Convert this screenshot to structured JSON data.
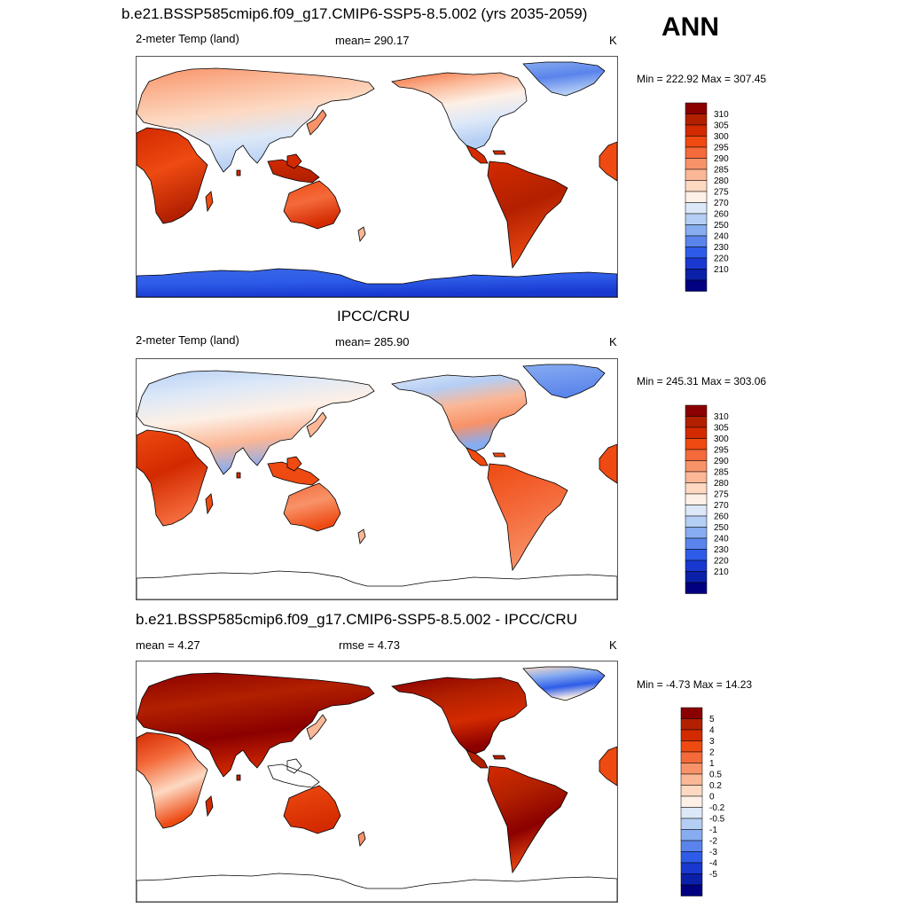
{
  "season": "ANN",
  "panels": [
    {
      "title": "b.e21.BSSP585cmip6.f09_g17.CMIP6-SSP5-8.5.002 (yrs 2035-2059)",
      "left_label": "2-meter Temp (land)",
      "center_label": "mean= 290.17",
      "right_label": "K",
      "minmax": "Min = 222.92 Max = 307.45",
      "map_style": "model",
      "colorbar": {
        "labels": [
          "310",
          "305",
          "300",
          "295",
          "290",
          "285",
          "280",
          "275",
          "270",
          "260",
          "250",
          "240",
          "230",
          "220",
          "210"
        ],
        "colors": [
          "#8b0000",
          "#b22000",
          "#d32a00",
          "#ee4a12",
          "#f46a3a",
          "#f89268",
          "#fbb796",
          "#fdd9c2",
          "#fdf0e6",
          "#dce8f8",
          "#b5cef4",
          "#87acf0",
          "#5a84ec",
          "#2e5ce8",
          "#1838d0",
          "#0a20a8",
          "#000080"
        ]
      }
    },
    {
      "title": "IPCC/CRU",
      "left_label": "2-meter Temp (land)",
      "center_label": "mean= 285.90",
      "right_label": "K",
      "minmax": "Min = 245.31 Max = 303.06",
      "map_style": "obs",
      "colorbar": {
        "labels": [
          "310",
          "305",
          "300",
          "295",
          "290",
          "285",
          "280",
          "275",
          "270",
          "260",
          "250",
          "240",
          "230",
          "220",
          "210"
        ],
        "colors": [
          "#8b0000",
          "#b22000",
          "#d32a00",
          "#ee4a12",
          "#f46a3a",
          "#f89268",
          "#fbb796",
          "#fdd9c2",
          "#fdf0e6",
          "#dce8f8",
          "#b5cef4",
          "#87acf0",
          "#5a84ec",
          "#2e5ce8",
          "#1838d0",
          "#0a20a8",
          "#000080"
        ]
      }
    },
    {
      "title": "b.e21.BSSP585cmip6.f09_g17.CMIP6-SSP5-8.5.002 - IPCC/CRU",
      "left_label": "mean =   4.27",
      "center_label": "rmse =   4.73",
      "right_label": "K",
      "minmax": "Min =  -4.73 Max =  14.23",
      "map_style": "diff",
      "colorbar": {
        "labels": [
          "5",
          "4",
          "3",
          "2",
          "1",
          "0.5",
          "0.2",
          "0",
          "-0.2",
          "-0.5",
          "-1",
          "-2",
          "-3",
          "-4",
          "-5"
        ],
        "colors": [
          "#8b0000",
          "#b22000",
          "#d32a00",
          "#ee4a12",
          "#f46a3a",
          "#f89268",
          "#fbb796",
          "#fdd9c2",
          "#fdf0e6",
          "#dce8f8",
          "#b5cef4",
          "#87acf0",
          "#5a84ec",
          "#2e5ce8",
          "#1838d0",
          "#0a20a8",
          "#000080"
        ]
      }
    }
  ]
}
